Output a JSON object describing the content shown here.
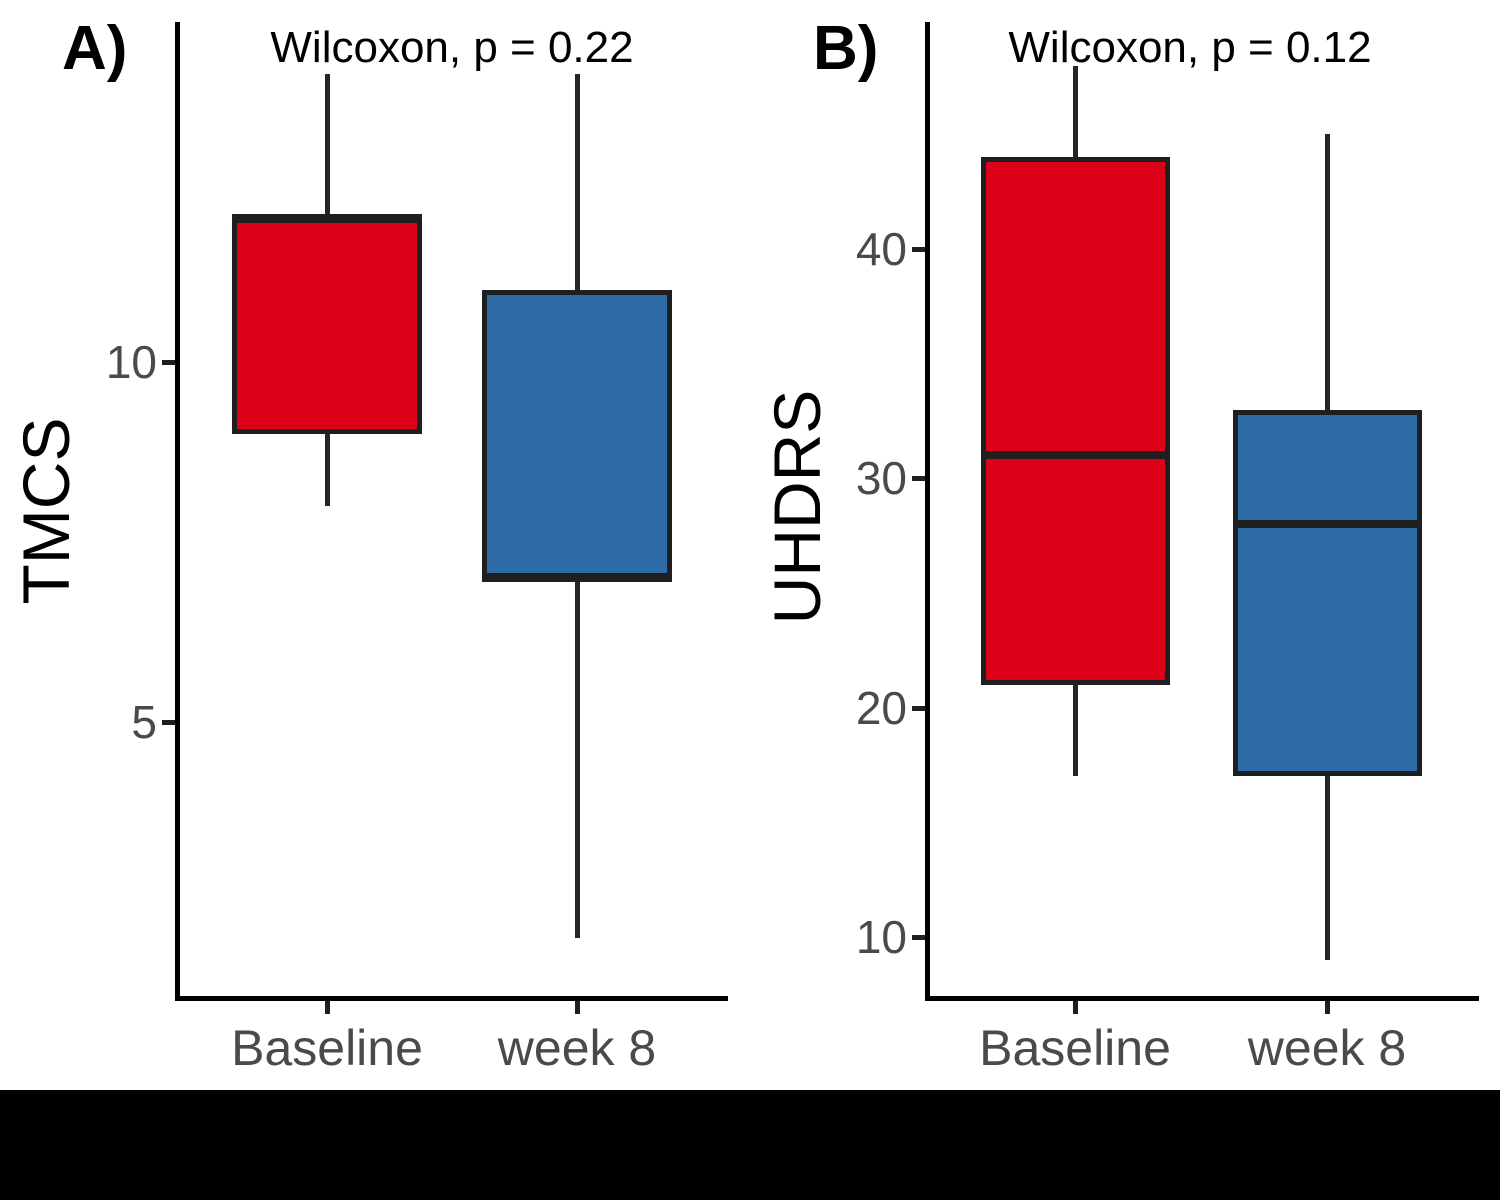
{
  "figure": {
    "background": "#ffffff",
    "bottom_bar_color": "#000000"
  },
  "colors": {
    "baseline_fill": "#DC0018",
    "week8_fill": "#2E6CA8",
    "box_border": "#1f1f1f",
    "axis_line": "#000000",
    "tick_text": "#4a4a4a"
  },
  "chart_data": [
    {
      "type": "boxplot",
      "panel_label": "A)",
      "subtitle": "Wilcoxon, p = 0.22",
      "ylabel": "TMCS",
      "xlabel": "",
      "categories": [
        "Baseline",
        "week 8"
      ],
      "y_ticks": [
        5,
        10
      ],
      "ylim": [
        1.5,
        14.7
      ],
      "grid": false,
      "legend": "none",
      "series": [
        {
          "name": "Baseline",
          "color_key": "baseline_fill",
          "min": 8,
          "q1": 9,
          "median": 12,
          "q3": 12,
          "max": 14
        },
        {
          "name": "week 8",
          "color_key": "week8_fill",
          "min": 2,
          "q1": 7,
          "median": 7,
          "q3": 11,
          "max": 14
        }
      ]
    },
    {
      "type": "boxplot",
      "panel_label": "B)",
      "subtitle": "Wilcoxon, p = 0.12",
      "ylabel": "UHDRS",
      "xlabel": "",
      "categories": [
        "Baseline",
        "week 8"
      ],
      "y_ticks": [
        10,
        20,
        30,
        40
      ],
      "ylim": [
        8,
        49
      ],
      "grid": false,
      "legend": "none",
      "series": [
        {
          "name": "Baseline",
          "color_key": "baseline_fill",
          "min": 17,
          "q1": 21,
          "median": 31,
          "q3": 44,
          "max": 48
        },
        {
          "name": "week 8",
          "color_key": "week8_fill",
          "min": 9,
          "q1": 17,
          "median": 28,
          "q3": 33,
          "max": 45
        }
      ]
    }
  ]
}
